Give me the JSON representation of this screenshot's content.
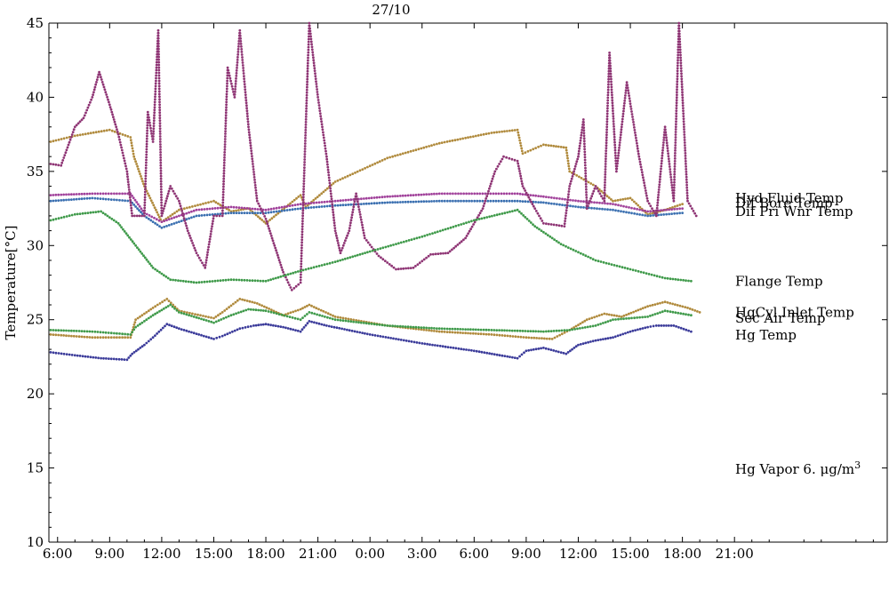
{
  "chart_data": {
    "type": "scatter",
    "title": "27/10",
    "ylabel": "Temperature[°C]",
    "xlabel": "",
    "x_unit": "hours",
    "xlim": [
      5.5,
      53.8
    ],
    "ylim": [
      10,
      45
    ],
    "x_ticks": [
      {
        "x": 6,
        "label": "6:00"
      },
      {
        "x": 9,
        "label": "9:00"
      },
      {
        "x": 12,
        "label": "12:00"
      },
      {
        "x": 15,
        "label": "15:00"
      },
      {
        "x": 18,
        "label": "18:00"
      },
      {
        "x": 21,
        "label": "21:00"
      },
      {
        "x": 24,
        "label": "0:00"
      },
      {
        "x": 27,
        "label": "3:00"
      },
      {
        "x": 30,
        "label": "6:00"
      },
      {
        "x": 33,
        "label": "9:00"
      },
      {
        "x": 36,
        "label": "12:00"
      },
      {
        "x": 39,
        "label": "15:00"
      },
      {
        "x": 42,
        "label": "18:00"
      },
      {
        "x": 45,
        "label": "21:00"
      }
    ],
    "y_ticks": [
      10,
      15,
      20,
      25,
      30,
      35,
      40,
      45
    ],
    "annotation": "Hg Vapor 6. μg/m3",
    "series": [
      {
        "name": "Hyd Fluid Temp",
        "color": "#b08a3c",
        "points": [
          [
            5.6,
            37.0
          ],
          [
            7,
            37.4
          ],
          [
            9,
            37.8
          ],
          [
            10.2,
            37.3
          ],
          [
            10.4,
            36
          ],
          [
            11,
            34
          ],
          [
            12,
            31.6
          ],
          [
            13,
            32.4
          ],
          [
            15,
            33
          ],
          [
            16,
            32.3
          ],
          [
            17,
            32.5
          ],
          [
            18,
            31.5
          ],
          [
            20,
            33.4
          ],
          [
            20.3,
            32.6
          ],
          [
            22,
            34.3
          ],
          [
            25,
            35.9
          ],
          [
            28,
            36.9
          ],
          [
            31,
            37.6
          ],
          [
            32.5,
            37.8
          ],
          [
            32.8,
            36.2
          ],
          [
            34,
            36.8
          ],
          [
            35.3,
            36.6
          ],
          [
            35.5,
            35
          ],
          [
            37,
            34
          ],
          [
            38,
            33
          ],
          [
            39,
            33.2
          ],
          [
            40,
            32.1
          ],
          [
            41,
            32.4
          ],
          [
            42,
            32.8
          ]
        ]
      },
      {
        "name": "Dif Bore Temp",
        "color": "#3a6fb0",
        "points": [
          [
            5.6,
            33.0
          ],
          [
            8,
            33.2
          ],
          [
            10.2,
            33.0
          ],
          [
            11,
            32
          ],
          [
            12,
            31.2
          ],
          [
            14,
            32
          ],
          [
            16,
            32.2
          ],
          [
            18,
            32.2
          ],
          [
            20,
            32.5
          ],
          [
            22,
            32.7
          ],
          [
            25,
            32.9
          ],
          [
            28,
            33.0
          ],
          [
            32.5,
            33.0
          ],
          [
            34,
            32.9
          ],
          [
            36,
            32.6
          ],
          [
            38,
            32.4
          ],
          [
            40,
            32.0
          ],
          [
            42,
            32.2
          ]
        ]
      },
      {
        "name": "Dif Pri Wnr Temp",
        "color": "#a0409a",
        "points": [
          [
            5.6,
            33.4
          ],
          [
            8,
            33.5
          ],
          [
            10.2,
            33.5
          ],
          [
            11,
            32.2
          ],
          [
            12,
            31.6
          ],
          [
            14,
            32.4
          ],
          [
            16,
            32.6
          ],
          [
            18,
            32.4
          ],
          [
            20,
            32.8
          ],
          [
            22,
            33.0
          ],
          [
            25,
            33.3
          ],
          [
            28,
            33.5
          ],
          [
            32.5,
            33.5
          ],
          [
            34,
            33.3
          ],
          [
            36,
            33
          ],
          [
            38,
            32.8
          ],
          [
            40,
            32.3
          ],
          [
            42,
            32.5
          ]
        ]
      },
      {
        "name": "Hg Vapor",
        "color": "#8e3474",
        "points": [
          [
            5.6,
            35.5
          ],
          [
            6.2,
            35.4
          ],
          [
            7,
            38
          ],
          [
            7.5,
            38.6
          ],
          [
            8,
            40
          ],
          [
            8.4,
            41.7
          ],
          [
            9,
            39.5
          ],
          [
            9.5,
            37.5
          ],
          [
            10,
            35
          ],
          [
            10.3,
            32
          ],
          [
            11,
            32
          ],
          [
            11.2,
            39
          ],
          [
            11.5,
            37
          ],
          [
            11.8,
            44.5
          ],
          [
            12,
            32
          ],
          [
            12.5,
            34
          ],
          [
            13,
            33
          ],
          [
            13.5,
            31
          ],
          [
            14,
            29.5
          ],
          [
            14.5,
            28.5
          ],
          [
            15,
            32
          ],
          [
            15.5,
            32
          ],
          [
            15.8,
            42
          ],
          [
            16.2,
            40
          ],
          [
            16.5,
            44.5
          ],
          [
            17,
            38
          ],
          [
            17.5,
            33
          ],
          [
            18,
            31.8
          ],
          [
            18.5,
            30
          ],
          [
            19,
            28.2
          ],
          [
            19.5,
            27
          ],
          [
            20,
            27.5
          ],
          [
            20.5,
            45
          ],
          [
            21,
            40
          ],
          [
            21.5,
            36
          ],
          [
            22,
            31
          ],
          [
            22.3,
            29.5
          ],
          [
            22.8,
            31
          ],
          [
            23.2,
            33.5
          ],
          [
            23.7,
            30.5
          ],
          [
            24.5,
            29.3
          ],
          [
            25.5,
            28.4
          ],
          [
            26.5,
            28.5
          ],
          [
            27.5,
            29.4
          ],
          [
            28.5,
            29.5
          ],
          [
            29.5,
            30.5
          ],
          [
            30.5,
            32.5
          ],
          [
            31.2,
            35
          ],
          [
            31.7,
            36
          ],
          [
            32.5,
            35.7
          ],
          [
            32.8,
            34
          ],
          [
            33.5,
            32.5
          ],
          [
            34,
            31.5
          ],
          [
            35.2,
            31.3
          ],
          [
            35.5,
            34
          ],
          [
            36,
            36
          ],
          [
            36.3,
            38.5
          ],
          [
            36.5,
            32.5
          ],
          [
            37,
            34
          ],
          [
            37.5,
            33
          ],
          [
            37.8,
            43
          ],
          [
            38.2,
            35
          ],
          [
            38.8,
            41
          ],
          [
            39.5,
            36
          ],
          [
            40,
            33
          ],
          [
            40.5,
            32
          ],
          [
            41,
            38
          ],
          [
            41.5,
            33
          ],
          [
            41.8,
            45
          ],
          [
            42.3,
            33
          ],
          [
            42.8,
            32
          ]
        ]
      },
      {
        "name": "Flange Temp",
        "color": "#3f9a4a",
        "points": [
          [
            5.6,
            31.7
          ],
          [
            7,
            32.1
          ],
          [
            8.5,
            32.3
          ],
          [
            9.5,
            31.5
          ],
          [
            10.5,
            30
          ],
          [
            11.5,
            28.5
          ],
          [
            12.5,
            27.7
          ],
          [
            14,
            27.5
          ],
          [
            16,
            27.7
          ],
          [
            18,
            27.6
          ],
          [
            20,
            28.3
          ],
          [
            22,
            28.9
          ],
          [
            24,
            29.6
          ],
          [
            27,
            30.6
          ],
          [
            30,
            31.7
          ],
          [
            32.5,
            32.4
          ],
          [
            33.5,
            31.3
          ],
          [
            35,
            30.1
          ],
          [
            37,
            29
          ],
          [
            39,
            28.4
          ],
          [
            41,
            27.8
          ],
          [
            42.5,
            27.6
          ]
        ]
      },
      {
        "name": "HgCyl Inlet Temp",
        "color": "#b08a3c",
        "points": [
          [
            5.6,
            24
          ],
          [
            8,
            23.8
          ],
          [
            10.2,
            23.8
          ],
          [
            10.5,
            25
          ],
          [
            11.5,
            25.8
          ],
          [
            12.3,
            26.4
          ],
          [
            13,
            25.6
          ],
          [
            15,
            25.1
          ],
          [
            15.5,
            25.5
          ],
          [
            16.5,
            26.4
          ],
          [
            17.5,
            26.1
          ],
          [
            19,
            25.3
          ],
          [
            20,
            25.7
          ],
          [
            20.5,
            26.0
          ],
          [
            22,
            25.2
          ],
          [
            25,
            24.6
          ],
          [
            28,
            24.2
          ],
          [
            31,
            24.0
          ],
          [
            33,
            23.8
          ],
          [
            34.5,
            23.7
          ],
          [
            35.5,
            24.3
          ],
          [
            36.5,
            25
          ],
          [
            37.5,
            25.4
          ],
          [
            38.5,
            25.2
          ],
          [
            40,
            25.9
          ],
          [
            41,
            26.2
          ],
          [
            42.3,
            25.8
          ],
          [
            43,
            25.5
          ]
        ]
      },
      {
        "name": "Sec Air Temp",
        "color": "#3f9a4a",
        "points": [
          [
            5.6,
            24.3
          ],
          [
            8,
            24.2
          ],
          [
            10.2,
            24.0
          ],
          [
            10.5,
            24.5
          ],
          [
            11.5,
            25.3
          ],
          [
            12.5,
            26
          ],
          [
            13,
            25.5
          ],
          [
            15,
            24.8
          ],
          [
            16,
            25.3
          ],
          [
            17,
            25.7
          ],
          [
            18,
            25.6
          ],
          [
            20,
            25.0
          ],
          [
            20.5,
            25.5
          ],
          [
            22,
            25.0
          ],
          [
            25,
            24.6
          ],
          [
            28,
            24.4
          ],
          [
            31,
            24.3
          ],
          [
            34,
            24.2
          ],
          [
            35.5,
            24.3
          ],
          [
            37,
            24.6
          ],
          [
            38,
            25.0
          ],
          [
            40,
            25.2
          ],
          [
            41,
            25.6
          ],
          [
            42.5,
            25.3
          ]
        ]
      },
      {
        "name": "Hg Temp",
        "color": "#3b3b9a",
        "points": [
          [
            5.6,
            22.8
          ],
          [
            7,
            22.6
          ],
          [
            8.5,
            22.4
          ],
          [
            10,
            22.3
          ],
          [
            10.3,
            22.7
          ],
          [
            11,
            23.3
          ],
          [
            11.5,
            23.8
          ],
          [
            12.3,
            24.7
          ],
          [
            13,
            24.4
          ],
          [
            15,
            23.7
          ],
          [
            15.5,
            23.9
          ],
          [
            16.5,
            24.4
          ],
          [
            17.3,
            24.6
          ],
          [
            18,
            24.7
          ],
          [
            19,
            24.5
          ],
          [
            20,
            24.2
          ],
          [
            20.5,
            24.9
          ],
          [
            21.5,
            24.6
          ],
          [
            24,
            24.0
          ],
          [
            27,
            23.4
          ],
          [
            30,
            22.9
          ],
          [
            32.5,
            22.4
          ],
          [
            33,
            22.9
          ],
          [
            34,
            23.1
          ],
          [
            35.3,
            22.7
          ],
          [
            36,
            23.3
          ],
          [
            37,
            23.6
          ],
          [
            38,
            23.8
          ],
          [
            39,
            24.2
          ],
          [
            40,
            24.5
          ],
          [
            40.5,
            24.6
          ],
          [
            41.5,
            24.6
          ],
          [
            42.5,
            24.2
          ]
        ]
      }
    ],
    "legend_labels": [
      {
        "name": "Hyd Fluid Temp",
        "value": 33.2
      },
      {
        "name": "Dif Bore Temp",
        "value": 32.85
      },
      {
        "name": "Dif Pri Wnr Temp",
        "value": 32.3
      },
      {
        "name": "Flange Temp",
        "value": 27.6
      },
      {
        "name": "HgCyl Inlet Temp",
        "value": 25.5
      },
      {
        "name": "Sec Air Temp",
        "value": 25.1
      },
      {
        "name": "Hg Temp",
        "value": 23.95
      }
    ]
  }
}
